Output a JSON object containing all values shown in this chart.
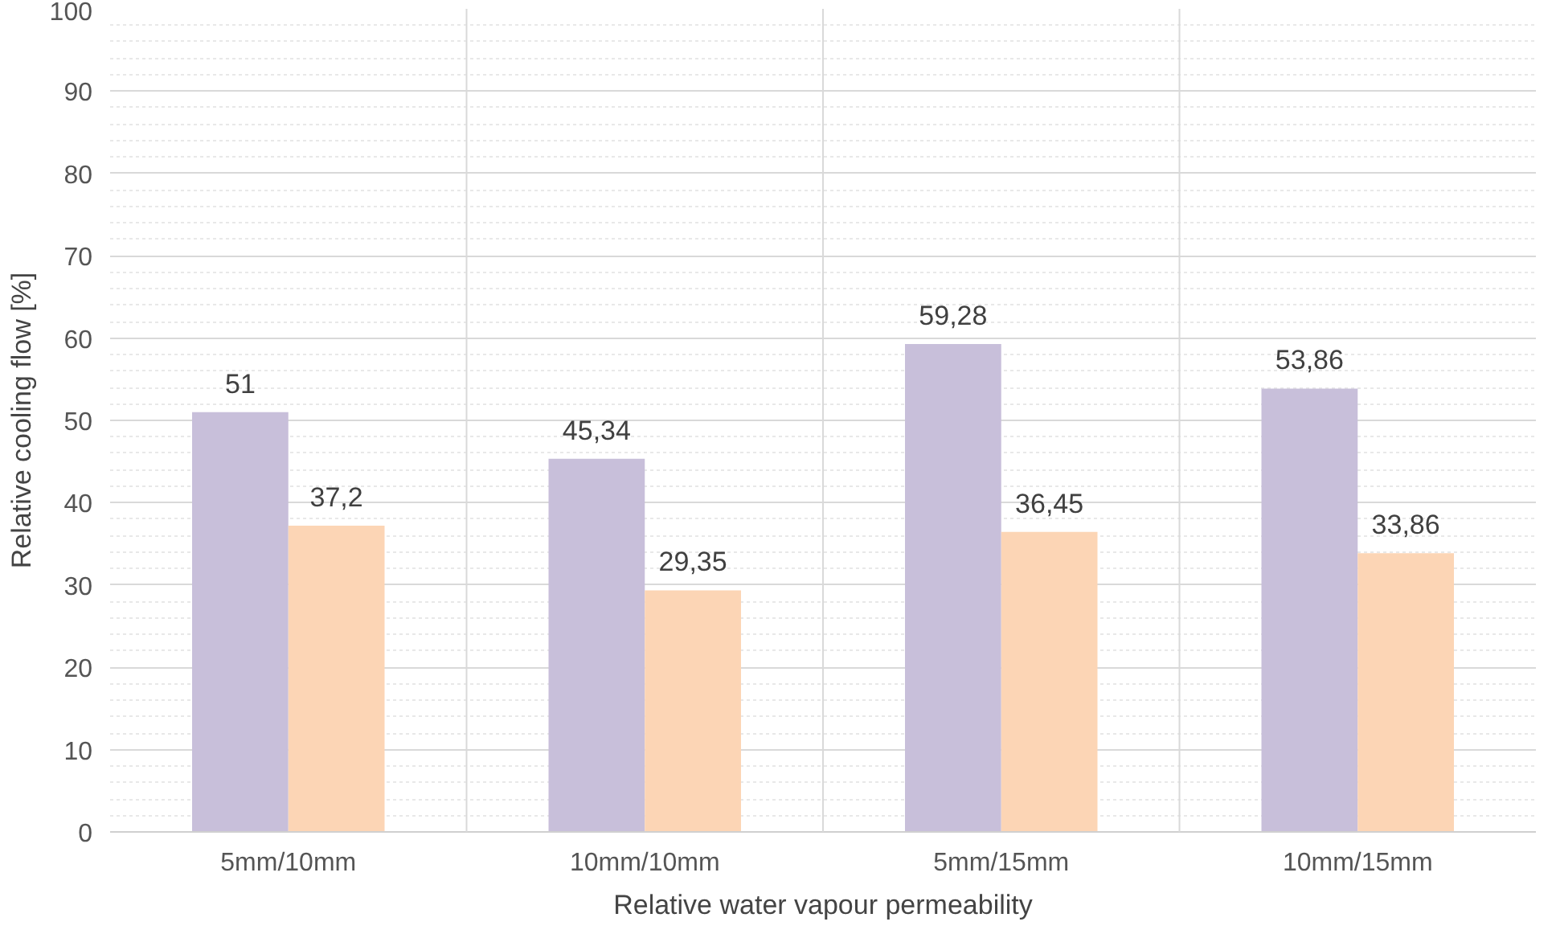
{
  "chart_data": {
    "type": "bar",
    "xlabel": "Relative water vapour permeability",
    "ylabel": "Relative cooling flow [%]",
    "categories": [
      "5mm/10mm",
      "10mm/10mm",
      "5mm/15mm",
      "10mm/15mm"
    ],
    "series": [
      {
        "color": "#c8bfda",
        "values": [
          51,
          45.34,
          59.28,
          53.86
        ],
        "value_labels": [
          "51",
          "45,34",
          "59,28",
          "53,86"
        ]
      },
      {
        "color": "#fcd5b5",
        "values": [
          37.2,
          29.35,
          36.45,
          33.86
        ],
        "value_labels": [
          "37,2",
          "29,35",
          "36,45",
          "33,86"
        ]
      }
    ],
    "ylim": [
      0,
      100
    ],
    "yticks": [
      0,
      10,
      20,
      30,
      40,
      50,
      60,
      70,
      80,
      90,
      100
    ],
    "grid": true
  }
}
